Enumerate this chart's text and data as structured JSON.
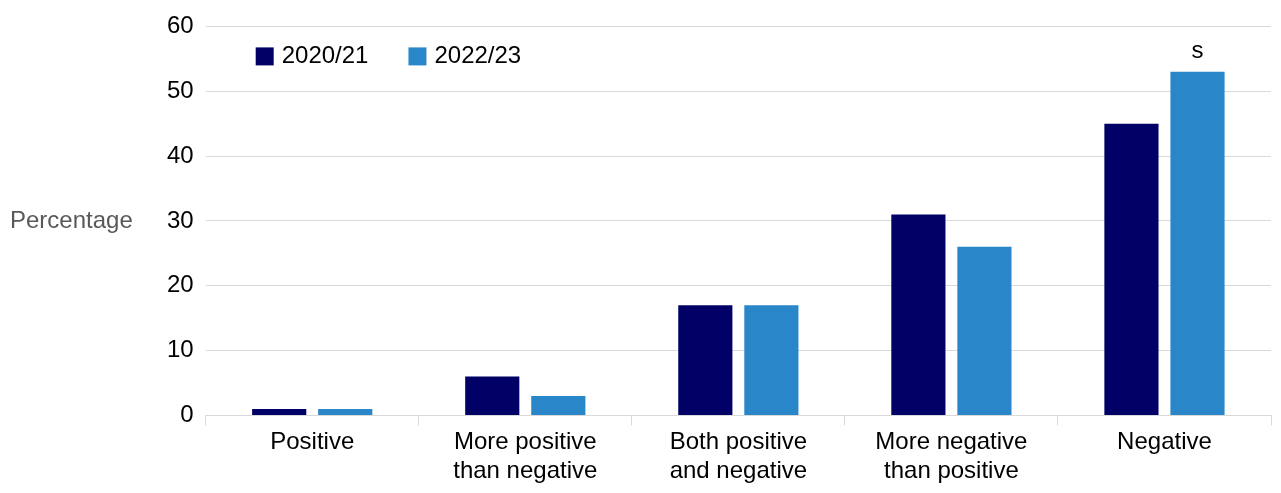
{
  "chart_data": {
    "type": "bar",
    "ylabel": "Percentage",
    "categories": [
      "Positive",
      "More positive than negative",
      "Both positive and negative",
      "More negative than positive",
      "Negative"
    ],
    "series": [
      {
        "name": "2020/21",
        "color": "#000066",
        "values": [
          1,
          6,
          17,
          31,
          45
        ]
      },
      {
        "name": "2022/23",
        "color": "#2986c8",
        "values": [
          1,
          3,
          17,
          26,
          53
        ],
        "value_labels": [
          null,
          null,
          null,
          null,
          "s"
        ]
      }
    ],
    "ylim": [
      0,
      60
    ],
    "yticks": [
      0,
      10,
      20,
      30,
      40,
      50,
      60
    ],
    "grid": "y",
    "legend": "top left"
  }
}
